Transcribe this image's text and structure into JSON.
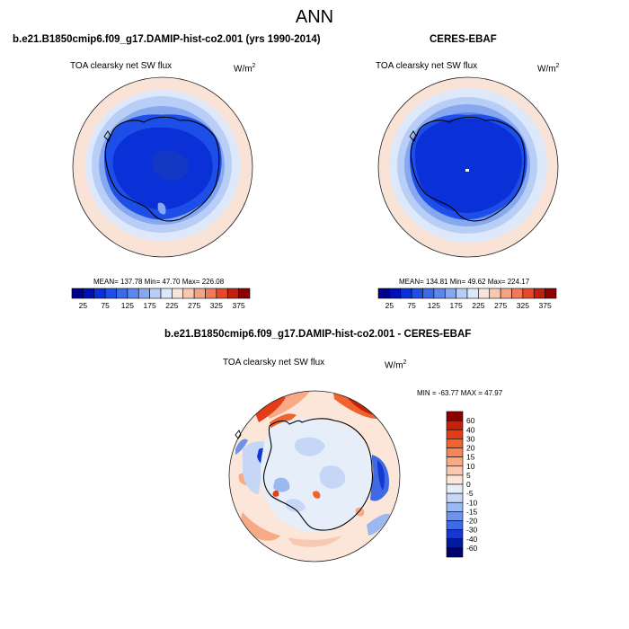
{
  "title": "ANN",
  "panels": {
    "model": {
      "case_title": "b.e21.B1850cmip6.f09_g17.DAMIP-hist-co2.001 (yrs 1990-2014)",
      "variable": "TOA clearsky net SW flux",
      "units": "W/m",
      "units_sup": "2",
      "stats_text": "MEAN= 137.78  Min=  47.70  Max= 226.08"
    },
    "obs": {
      "case_title": "CERES-EBAF",
      "variable": "TOA clearsky net SW flux",
      "units": "W/m",
      "units_sup": "2",
      "stats_text": "MEAN= 134.81  Min=  49.62  Max= 224.17"
    },
    "diff": {
      "case_title": "b.e21.B1850cmip6.f09_g17.DAMIP-hist-co2.001 - CERES-EBAF",
      "variable": "TOA clearsky net SW flux",
      "units": "W/m",
      "units_sup": "2",
      "stats_text": "MIN = -63.77 MAX =  47.97"
    }
  },
  "chart_data": [
    {
      "type": "heatmap",
      "projection": "south polar stereographic",
      "title": "TOA clearsky net SW flux",
      "units": "W/m2",
      "stats": {
        "mean": 137.78,
        "min": 47.7,
        "max": 226.08
      },
      "colorbar": {
        "levels": [
          25,
          50,
          75,
          100,
          125,
          150,
          175,
          200,
          225,
          250,
          275,
          300,
          325,
          350,
          375
        ],
        "tick_labels": [
          "25",
          "75",
          "125",
          "175",
          "225",
          "275",
          "325",
          "375"
        ],
        "colors": [
          "#00008a",
          "#0010b8",
          "#0a30d8",
          "#1e4ee8",
          "#3a6ae8",
          "#5a88ec",
          "#86a8f0",
          "#b8cef6",
          "#dce8fa",
          "#f8e4dc",
          "#f8c8b0",
          "#f4a484",
          "#f07a58",
          "#e44a2a",
          "#c0200e",
          "#8c0000"
        ]
      }
    },
    {
      "type": "heatmap",
      "projection": "south polar stereographic",
      "title": "TOA clearsky net SW flux",
      "units": "W/m2",
      "stats": {
        "mean": 134.81,
        "min": 49.62,
        "max": 224.17
      },
      "colorbar": {
        "levels": [
          25,
          50,
          75,
          100,
          125,
          150,
          175,
          200,
          225,
          250,
          275,
          300,
          325,
          350,
          375
        ],
        "tick_labels": [
          "25",
          "75",
          "125",
          "175",
          "225",
          "275",
          "325",
          "375"
        ],
        "colors": [
          "#00008a",
          "#0010b8",
          "#0a30d8",
          "#1e4ee8",
          "#3a6ae8",
          "#5a88ec",
          "#86a8f0",
          "#b8cef6",
          "#dce8fa",
          "#f8e4dc",
          "#f8c8b0",
          "#f4a484",
          "#f07a58",
          "#e44a2a",
          "#c0200e",
          "#8c0000"
        ]
      }
    },
    {
      "type": "heatmap",
      "projection": "south polar stereographic",
      "title": "TOA clearsky net SW flux",
      "units": "W/m2",
      "stats": {
        "min": -63.77,
        "max": 47.97
      },
      "colorbar": {
        "levels": [
          60,
          40,
          30,
          20,
          15,
          10,
          5,
          0,
          -5,
          -10,
          -15,
          -20,
          -30,
          -40,
          -60
        ],
        "tick_labels": [
          "60",
          "40",
          "30",
          "20",
          "15",
          "10",
          "5",
          "0",
          "-5",
          "-10",
          "-15",
          "-20",
          "-30",
          "-40",
          "-60"
        ],
        "colors": [
          "#8c0000",
          "#c4200c",
          "#e43c16",
          "#f0622e",
          "#f6865a",
          "#f8aa86",
          "#fac8b0",
          "#fce6da",
          "#e6eefa",
          "#c6d6f6",
          "#9cb8f0",
          "#6e94ea",
          "#3e6ae4",
          "#1438d0",
          "#001c9c",
          "#00006e"
        ]
      }
    }
  ]
}
